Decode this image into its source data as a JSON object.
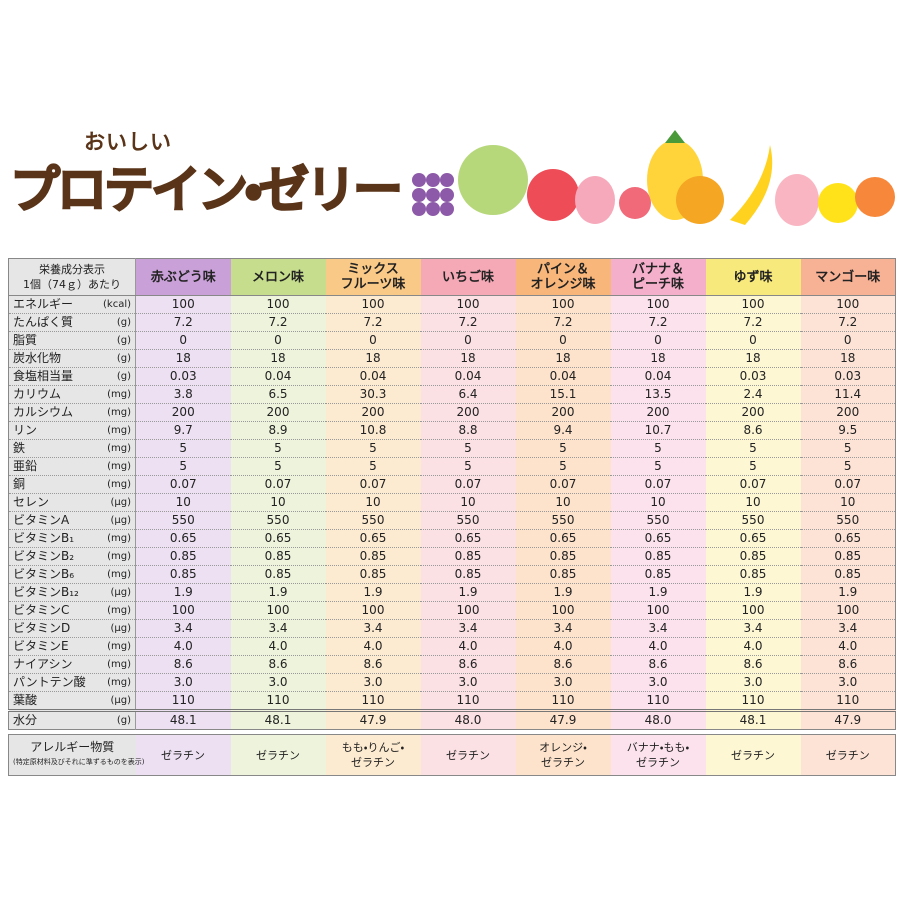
{
  "header": {
    "subtitle": "おいしい",
    "title": "プロテイン・ゼリー"
  },
  "table": {
    "corner": [
      "栄養成分表示",
      "1個（74ｇ）あたり"
    ],
    "columns": [
      [
        "赤ぶどう味"
      ],
      [
        "メロン味"
      ],
      [
        "ミックス",
        "フルーツ味"
      ],
      [
        "いちご味"
      ],
      [
        "パイン＆",
        "オレンジ味"
      ],
      [
        "バナナ＆",
        "ピーチ味"
      ],
      [
        "ゆず味"
      ],
      [
        "マンゴー味"
      ]
    ],
    "rows": [
      {
        "name": "エネルギー",
        "unit": "(kcal)",
        "values": [
          "100",
          "100",
          "100",
          "100",
          "100",
          "100",
          "100",
          "100"
        ]
      },
      {
        "name": "たんぱく質",
        "unit": "(g)",
        "values": [
          "7.2",
          "7.2",
          "7.2",
          "7.2",
          "7.2",
          "7.2",
          "7.2",
          "7.2"
        ]
      },
      {
        "name": "脂質",
        "unit": "(g)",
        "values": [
          "0",
          "0",
          "0",
          "0",
          "0",
          "0",
          "0",
          "0"
        ]
      },
      {
        "name": "炭水化物",
        "unit": "(g)",
        "values": [
          "18",
          "18",
          "18",
          "18",
          "18",
          "18",
          "18",
          "18"
        ]
      },
      {
        "name": "食塩相当量",
        "unit": "(g)",
        "values": [
          "0.03",
          "0.04",
          "0.04",
          "0.04",
          "0.04",
          "0.04",
          "0.03",
          "0.03"
        ]
      },
      {
        "name": "カリウム",
        "unit": "(mg)",
        "values": [
          "3.8",
          "6.5",
          "30.3",
          "6.4",
          "15.1",
          "13.5",
          "2.4",
          "11.4"
        ]
      },
      {
        "name": "カルシウム",
        "unit": "(mg)",
        "values": [
          "200",
          "200",
          "200",
          "200",
          "200",
          "200",
          "200",
          "200"
        ]
      },
      {
        "name": "リン",
        "unit": "(mg)",
        "values": [
          "9.7",
          "8.9",
          "10.8",
          "8.8",
          "9.4",
          "10.7",
          "8.6",
          "9.5"
        ]
      },
      {
        "name": "鉄",
        "unit": "(mg)",
        "values": [
          "5",
          "5",
          "5",
          "5",
          "5",
          "5",
          "5",
          "5"
        ]
      },
      {
        "name": "亜鉛",
        "unit": "(mg)",
        "values": [
          "5",
          "5",
          "5",
          "5",
          "5",
          "5",
          "5",
          "5"
        ]
      },
      {
        "name": "銅",
        "unit": "(mg)",
        "values": [
          "0.07",
          "0.07",
          "0.07",
          "0.07",
          "0.07",
          "0.07",
          "0.07",
          "0.07"
        ]
      },
      {
        "name": "セレン",
        "unit": "(μg)",
        "values": [
          "10",
          "10",
          "10",
          "10",
          "10",
          "10",
          "10",
          "10"
        ]
      },
      {
        "name": "ビタミンA",
        "unit": "(μg)",
        "values": [
          "550",
          "550",
          "550",
          "550",
          "550",
          "550",
          "550",
          "550"
        ]
      },
      {
        "name": "ビタミンB₁",
        "unit": "(mg)",
        "values": [
          "0.65",
          "0.65",
          "0.65",
          "0.65",
          "0.65",
          "0.65",
          "0.65",
          "0.65"
        ]
      },
      {
        "name": "ビタミンB₂",
        "unit": "(mg)",
        "values": [
          "0.85",
          "0.85",
          "0.85",
          "0.85",
          "0.85",
          "0.85",
          "0.85",
          "0.85"
        ]
      },
      {
        "name": "ビタミンB₆",
        "unit": "(mg)",
        "values": [
          "0.85",
          "0.85",
          "0.85",
          "0.85",
          "0.85",
          "0.85",
          "0.85",
          "0.85"
        ]
      },
      {
        "name": "ビタミンB₁₂",
        "unit": "(μg)",
        "values": [
          "1.9",
          "1.9",
          "1.9",
          "1.9",
          "1.9",
          "1.9",
          "1.9",
          "1.9"
        ]
      },
      {
        "name": "ビタミンC",
        "unit": "(mg)",
        "values": [
          "100",
          "100",
          "100",
          "100",
          "100",
          "100",
          "100",
          "100"
        ]
      },
      {
        "name": "ビタミンD",
        "unit": "(μg)",
        "values": [
          "3.4",
          "3.4",
          "3.4",
          "3.4",
          "3.4",
          "3.4",
          "3.4",
          "3.4"
        ]
      },
      {
        "name": "ビタミンE",
        "unit": "(mg)",
        "values": [
          "4.0",
          "4.0",
          "4.0",
          "4.0",
          "4.0",
          "4.0",
          "4.0",
          "4.0"
        ]
      },
      {
        "name": "ナイアシン",
        "unit": "(mg)",
        "values": [
          "8.6",
          "8.6",
          "8.6",
          "8.6",
          "8.6",
          "8.6",
          "8.6",
          "8.6"
        ]
      },
      {
        "name": "パントテン酸",
        "unit": "(mg)",
        "values": [
          "3.0",
          "3.0",
          "3.0",
          "3.0",
          "3.0",
          "3.0",
          "3.0",
          "3.0"
        ]
      },
      {
        "name": "葉酸",
        "unit": "(μg)",
        "values": [
          "110",
          "110",
          "110",
          "110",
          "110",
          "110",
          "110",
          "110"
        ]
      },
      {
        "name": "水分",
        "unit": "(g)",
        "values": [
          "48.1",
          "48.1",
          "47.9",
          "48.0",
          "47.9",
          "48.0",
          "48.1",
          "47.9"
        ]
      }
    ]
  },
  "allergy": {
    "label": "アレルギー物質",
    "note": "(特定原材料及びそれに準ずるものを表示)",
    "values": [
      [
        "ゼラチン"
      ],
      [
        "ゼラチン"
      ],
      [
        "もも・りんご・",
        "ゼラチン"
      ],
      [
        "ゼラチン"
      ],
      [
        "オレンジ・",
        "ゼラチン"
      ],
      [
        "バナナ・もも・",
        "ゼラチン"
      ],
      [
        "ゼラチン"
      ],
      [
        "ゼラチン"
      ]
    ]
  }
}
